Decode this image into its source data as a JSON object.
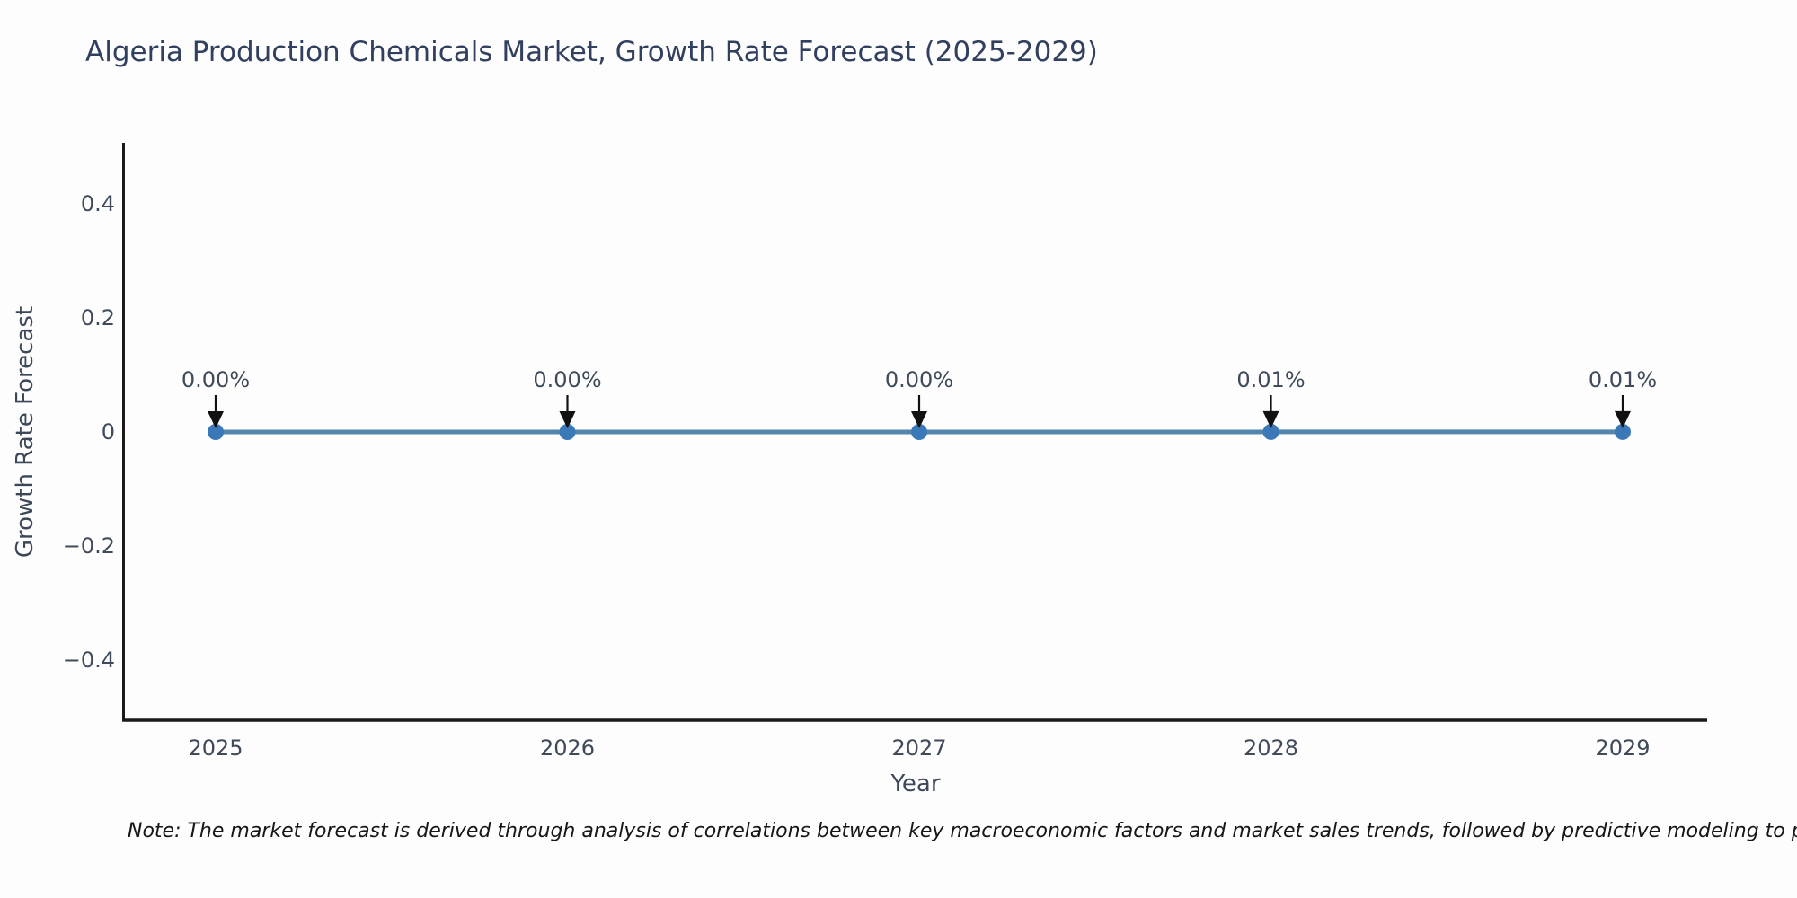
{
  "page": {
    "background_color": "#fdfdfd"
  },
  "chart_data": {
    "type": "line",
    "title": "Algeria Production Chemicals Market, Growth Rate Forecast (2025-2029)",
    "xlabel": "Year",
    "ylabel": "Growth Rate Forecast",
    "categories": [
      "2025",
      "2026",
      "2027",
      "2028",
      "2029"
    ],
    "series": [
      {
        "name": "Growth Rate Forecast",
        "values_percent": [
          0.0,
          0.0,
          0.0,
          0.01,
          0.01
        ]
      }
    ],
    "point_labels": [
      "0.00%",
      "0.00%",
      "0.00%",
      "0.01%",
      "0.01%"
    ],
    "ytick_values": [
      0.4,
      0.2,
      0,
      -0.2,
      -0.4
    ],
    "ytick_labels": [
      "0.4",
      "0.2",
      "0",
      "−0.2",
      "−0.4"
    ],
    "ylim": [
      -0.5,
      0.5
    ],
    "grid": false,
    "legend": false,
    "colors": {
      "line": "#5486ad",
      "marker": "#3a78b8",
      "axis": "#1a1a1a",
      "tick_text": "#3f4a5a",
      "title_text": "#32405f",
      "arrow": "#111111"
    },
    "note": "Note: The market forecast is derived through analysis of correlations between key macroeconomic factors and market sales trends, followed by predictive modeling to project future sales."
  }
}
